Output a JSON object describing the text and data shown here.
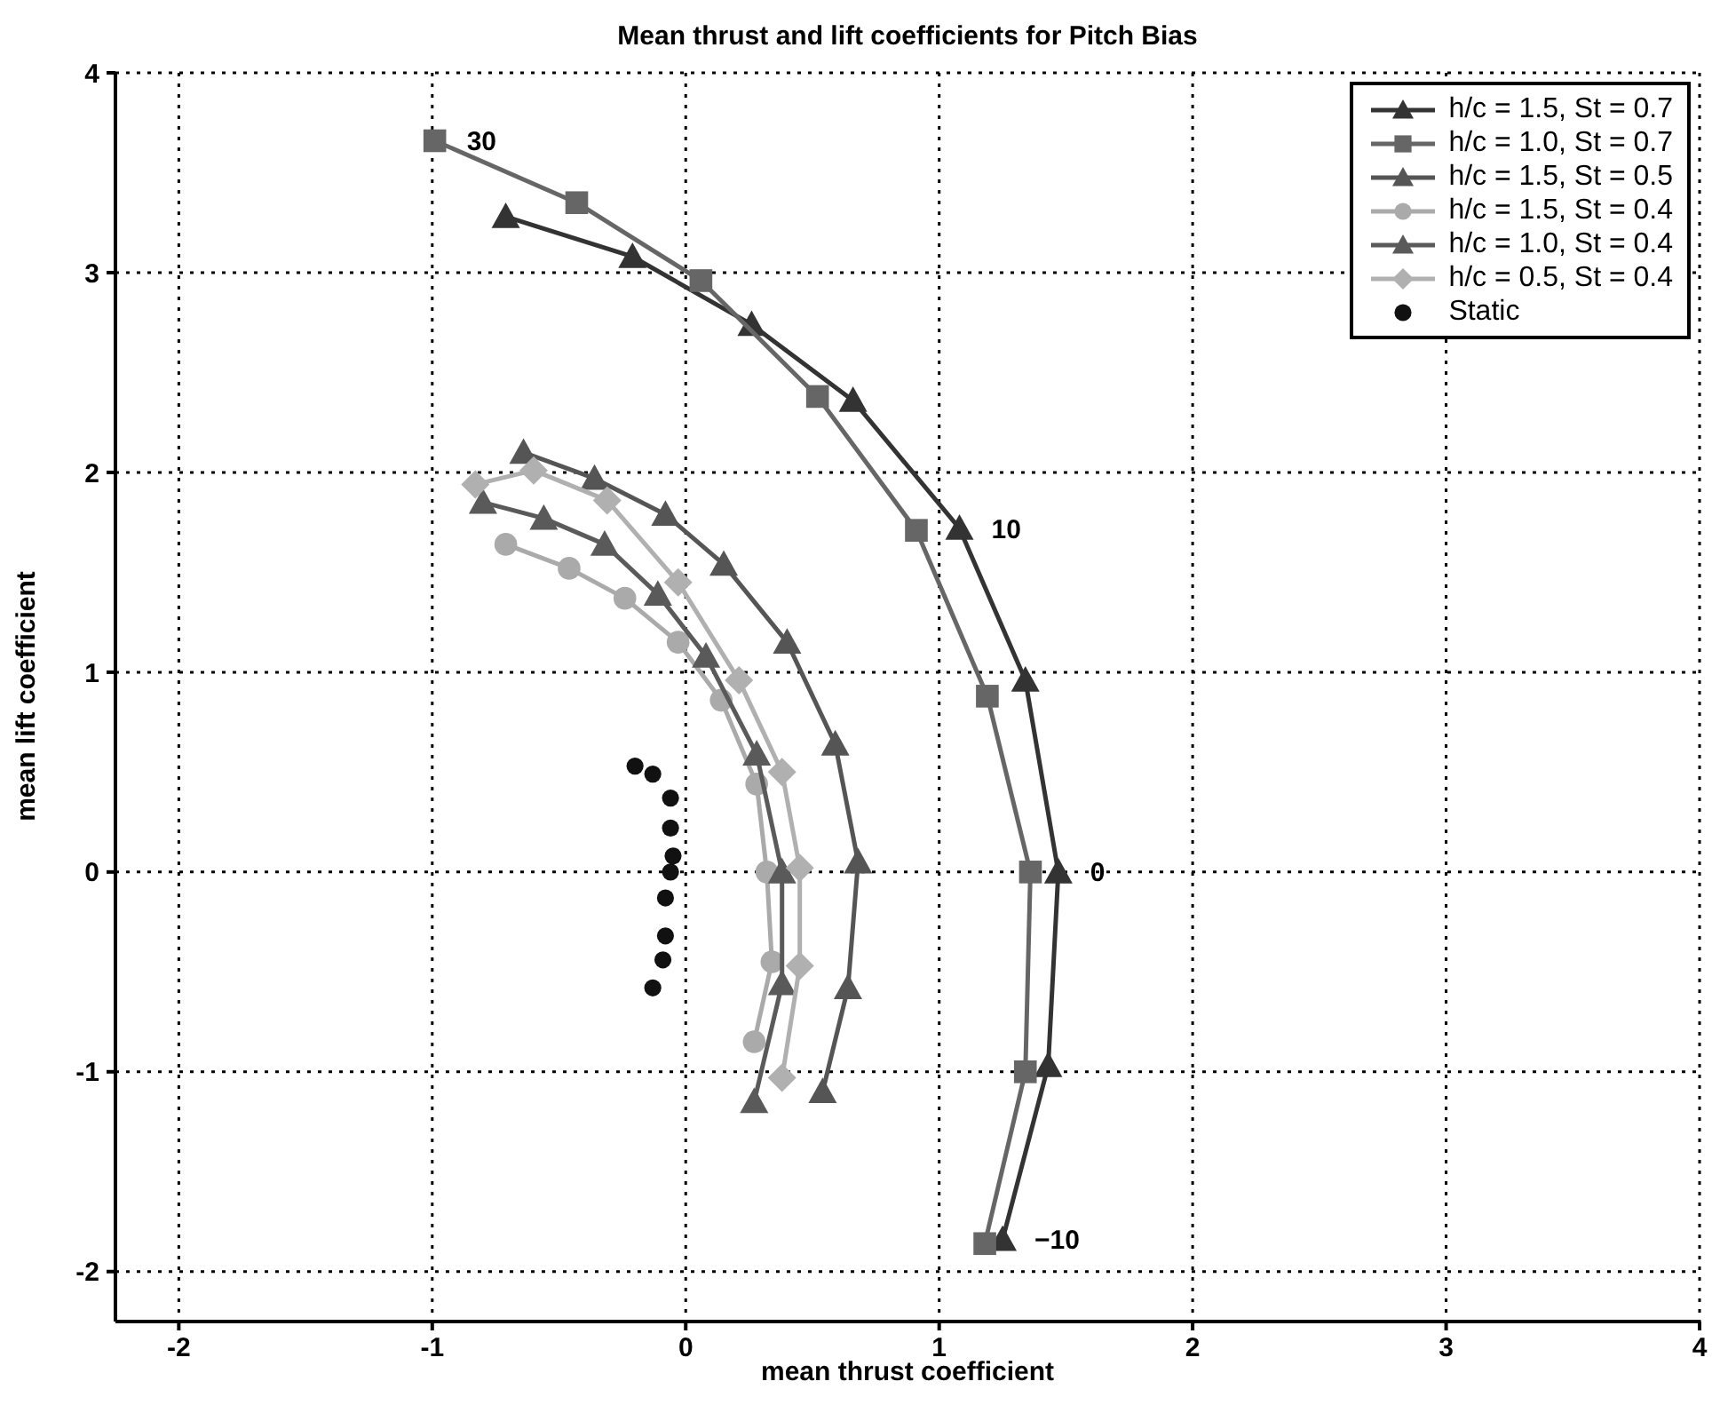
{
  "chart_data": {
    "type": "line",
    "title": "Mean thrust and lift coefficients for Pitch Bias",
    "xlabel": "mean thrust coefficient",
    "ylabel": "mean lift coefficient",
    "xlim": [
      -2.25,
      4
    ],
    "ylim": [
      -2.25,
      4
    ],
    "xticks": [
      -2,
      -1,
      0,
      1,
      2,
      3,
      4
    ],
    "yticks": [
      -2,
      -1,
      0,
      1,
      2,
      3,
      4
    ],
    "grid": true,
    "legend": "top right",
    "line_style": "solid",
    "series": [
      {
        "name": "h/c = 1.5, St = 0.7",
        "color": "#333333",
        "marker": "triangle",
        "x": [
          -0.71,
          -0.21,
          0.26,
          0.66,
          1.08,
          1.34,
          1.47,
          1.43,
          1.25
        ],
        "values": [
          3.28,
          3.08,
          2.74,
          2.36,
          1.72,
          0.96,
          0.0,
          -0.97,
          -1.84
        ]
      },
      {
        "name": "h/c = 1.0, St = 0.7",
        "color": "#666666",
        "marker": "square",
        "x": [
          -0.99,
          -0.43,
          0.06,
          0.52,
          0.91,
          1.19,
          1.36,
          1.34,
          1.18
        ],
        "values": [
          3.66,
          3.35,
          2.96,
          2.38,
          1.71,
          0.88,
          0.0,
          -1.0,
          -1.86
        ]
      },
      {
        "name": "h/c = 1.5, St = 0.5",
        "color": "#555555",
        "marker": "triangle",
        "x": [
          -0.64,
          -0.36,
          -0.08,
          0.15,
          0.4,
          0.59,
          0.68,
          0.64,
          0.54
        ],
        "values": [
          2.1,
          1.97,
          1.79,
          1.54,
          1.15,
          0.64,
          0.05,
          -0.58,
          -1.1
        ]
      },
      {
        "name": "h/c = 1.5, St = 0.4",
        "color": "#aaaaaa",
        "marker": "circle",
        "x": [
          -0.71,
          -0.46,
          -0.24,
          -0.03,
          0.14,
          0.28,
          0.32,
          0.34,
          0.27
        ],
        "values": [
          1.64,
          1.52,
          1.37,
          1.15,
          0.86,
          0.44,
          0.0,
          -0.45,
          -0.85
        ]
      },
      {
        "name": "h/c = 1.0, St = 0.4",
        "color": "#5a5a5a",
        "marker": "triangle",
        "x": [
          -0.8,
          -0.56,
          -0.32,
          -0.11,
          0.08,
          0.28,
          0.38,
          0.38,
          0.27
        ],
        "values": [
          1.85,
          1.77,
          1.64,
          1.39,
          1.08,
          0.59,
          0.0,
          -0.56,
          -1.15
        ]
      },
      {
        "name": "h/c = 0.5, St = 0.4",
        "color": "#b0b0b0",
        "marker": "diamond",
        "x": [
          -0.83,
          -0.6,
          -0.31,
          -0.03,
          0.21,
          0.38,
          0.45,
          0.45,
          0.38
        ],
        "values": [
          1.94,
          2.01,
          1.86,
          1.45,
          0.96,
          0.5,
          0.02,
          -0.47,
          -1.03
        ]
      },
      {
        "name": "Static",
        "type": "scatter",
        "color": "#111111",
        "marker": "circle",
        "x": [
          -0.2,
          -0.13,
          -0.06,
          -0.06,
          -0.05,
          -0.06,
          -0.08,
          -0.08,
          -0.09,
          -0.13
        ],
        "values": [
          0.53,
          0.49,
          0.37,
          0.22,
          0.08,
          0.0,
          -0.13,
          -0.32,
          -0.44,
          -0.58
        ]
      }
    ],
    "annotations": [
      {
        "text": "30",
        "x": -0.99,
        "y": 3.66
      },
      {
        "text": "10",
        "x": 1.08,
        "y": 1.72
      },
      {
        "text": "0",
        "x": 1.47,
        "y": 0
      },
      {
        "text": "−10",
        "x": 1.25,
        "y": -1.84
      }
    ]
  }
}
